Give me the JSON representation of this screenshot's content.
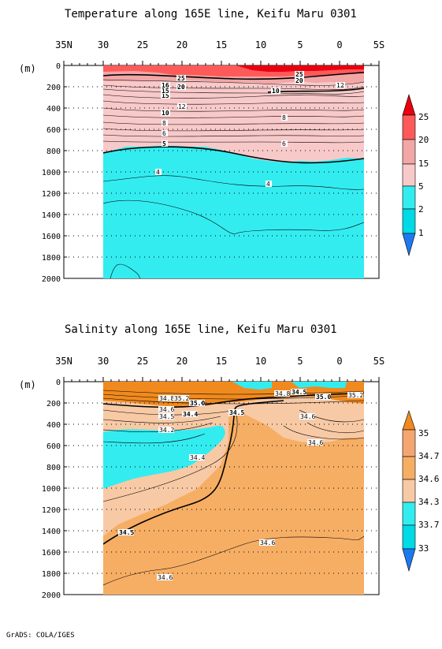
{
  "footer": "GrADS: COLA/IGES",
  "colors": {
    "red_dark": "#e8000f",
    "red": "#ff5a5a",
    "pink_mid": "#f2a6a6",
    "pink_light": "#f8c9c9",
    "cyan": "#33ecf0",
    "cyan_dark": "#00d9e6",
    "orange_dark": "#f08a1e",
    "orange": "#f6ae64",
    "peach": "#f7c9a5",
    "tan": "#f4a672",
    "blue_tip": "#1d79f0"
  },
  "chart_data": [
    {
      "type": "heatmap",
      "title": "Temperature along 165E line, Keifu Maru 0301",
      "ylabel": "(m)",
      "x_ticks": [
        "35N",
        "30",
        "25",
        "20",
        "15",
        "10",
        "5",
        "0",
        "5S"
      ],
      "y_ticks": [
        "0",
        "200",
        "400",
        "600",
        "800",
        "1000",
        "1200",
        "1400",
        "1600",
        "1800",
        "2000"
      ],
      "xlim": [
        "35N",
        "5S"
      ],
      "ylim": [
        0,
        2000
      ],
      "data_extent_lat": [
        30,
        -3
      ],
      "colorbar_levels": [
        "25",
        "20",
        "15",
        "5",
        "2",
        "1"
      ],
      "contour_labels": [
        "25",
        "20",
        "15",
        "12",
        "10",
        "8",
        "6",
        "5",
        "4",
        "16",
        "15",
        "20",
        "25",
        "12",
        "10",
        "8",
        "6",
        "4"
      ],
      "series": [
        {
          "name": "25",
          "depth_at_lat": [
            [
              30,
              20
            ],
            [
              20,
              40
            ],
            [
              10,
              45
            ],
            [
              0,
              35
            ],
            [
              -3,
              30
            ]
          ]
        },
        {
          "name": "20",
          "depth_at_lat": [
            [
              30,
              60
            ],
            [
              20,
              90
            ],
            [
              10,
              110
            ],
            [
              0,
              75
            ],
            [
              -3,
              70
            ]
          ]
        },
        {
          "name": "15",
          "depth_at_lat": [
            [
              30,
              150
            ],
            [
              20,
              140
            ],
            [
              10,
              160
            ],
            [
              0,
              160
            ],
            [
              -3,
              150
            ]
          ]
        },
        {
          "name": "10",
          "depth_at_lat": [
            [
              30,
              350
            ],
            [
              20,
              410
            ],
            [
              10,
              310
            ],
            [
              0,
              300
            ],
            [
              -3,
              280
            ]
          ]
        },
        {
          "name": "5",
          "depth_at_lat": [
            [
              30,
              800
            ],
            [
              20,
              760
            ],
            [
              10,
              900
            ],
            [
              0,
              880
            ],
            [
              -3,
              870
            ]
          ]
        },
        {
          "name": "4",
          "depth_at_lat": [
            [
              30,
              990
            ],
            [
              20,
              1000
            ],
            [
              10,
              1150
            ],
            [
              0,
              1180
            ],
            [
              -3,
              1170
            ]
          ]
        },
        {
          "name": "2",
          "depth_at_lat": [
            [
              30,
              1280
            ],
            [
              20,
              1380
            ],
            [
              12,
              1600
            ],
            [
              5,
              1550
            ],
            [
              -3,
              1460
            ]
          ]
        }
      ]
    },
    {
      "type": "heatmap",
      "title": "Salinity along 165E line, Keifu Maru 0301",
      "ylabel": "(m)",
      "x_ticks": [
        "35N",
        "30",
        "25",
        "20",
        "15",
        "10",
        "5",
        "0",
        "5S"
      ],
      "y_ticks": [
        "0",
        "200",
        "400",
        "600",
        "800",
        "1000",
        "1200",
        "1400",
        "1600",
        "1800",
        "2000"
      ],
      "xlim": [
        "35N",
        "5S"
      ],
      "ylim": [
        0,
        2000
      ],
      "data_extent_lat": [
        30,
        -3
      ],
      "colorbar_levels": [
        "35",
        "34.7",
        "34.6",
        "34.3",
        "33.7",
        "33"
      ],
      "contour_labels": [
        "34.8",
        "35.2",
        "34.6",
        "34.5",
        "34.4",
        "34.2",
        "34.5",
        "35.0",
        "34.5",
        "34.8",
        "35.0",
        "35.2",
        "34.6",
        "34.6",
        "34.4",
        "34.5",
        "34.6",
        "34.6"
      ],
      "series": [
        {
          "name": "35.0",
          "depth_at_lat": [
            [
              30,
              40
            ],
            [
              20,
              170
            ],
            [
              15,
              120
            ],
            [
              10,
              150
            ],
            [
              0,
              120
            ],
            [
              -3,
              110
            ]
          ]
        },
        {
          "name": "34.5",
          "depth_at_lat": [
            [
              30,
              1530
            ],
            [
              25,
              1400
            ],
            [
              15,
              480
            ],
            [
              12,
              220
            ],
            [
              5,
              130
            ],
            [
              -3,
              80
            ]
          ]
        },
        {
          "name": "34.6",
          "depth_at_lat": [
            [
              30,
              1930
            ],
            [
              20,
              1790
            ],
            [
              10,
              1620
            ],
            [
              0,
              1500
            ],
            [
              -3,
              1470
            ]
          ]
        },
        {
          "name": "34.4",
          "depth_at_lat": [
            [
              30,
              1050
            ],
            [
              20,
              700
            ],
            [
              16,
              420
            ],
            [
              14,
              300
            ]
          ]
        },
        {
          "name": "34.2",
          "depth_at_lat": [
            [
              30,
              430
            ],
            [
              20,
              440
            ],
            [
              15,
              380
            ]
          ]
        }
      ]
    }
  ]
}
